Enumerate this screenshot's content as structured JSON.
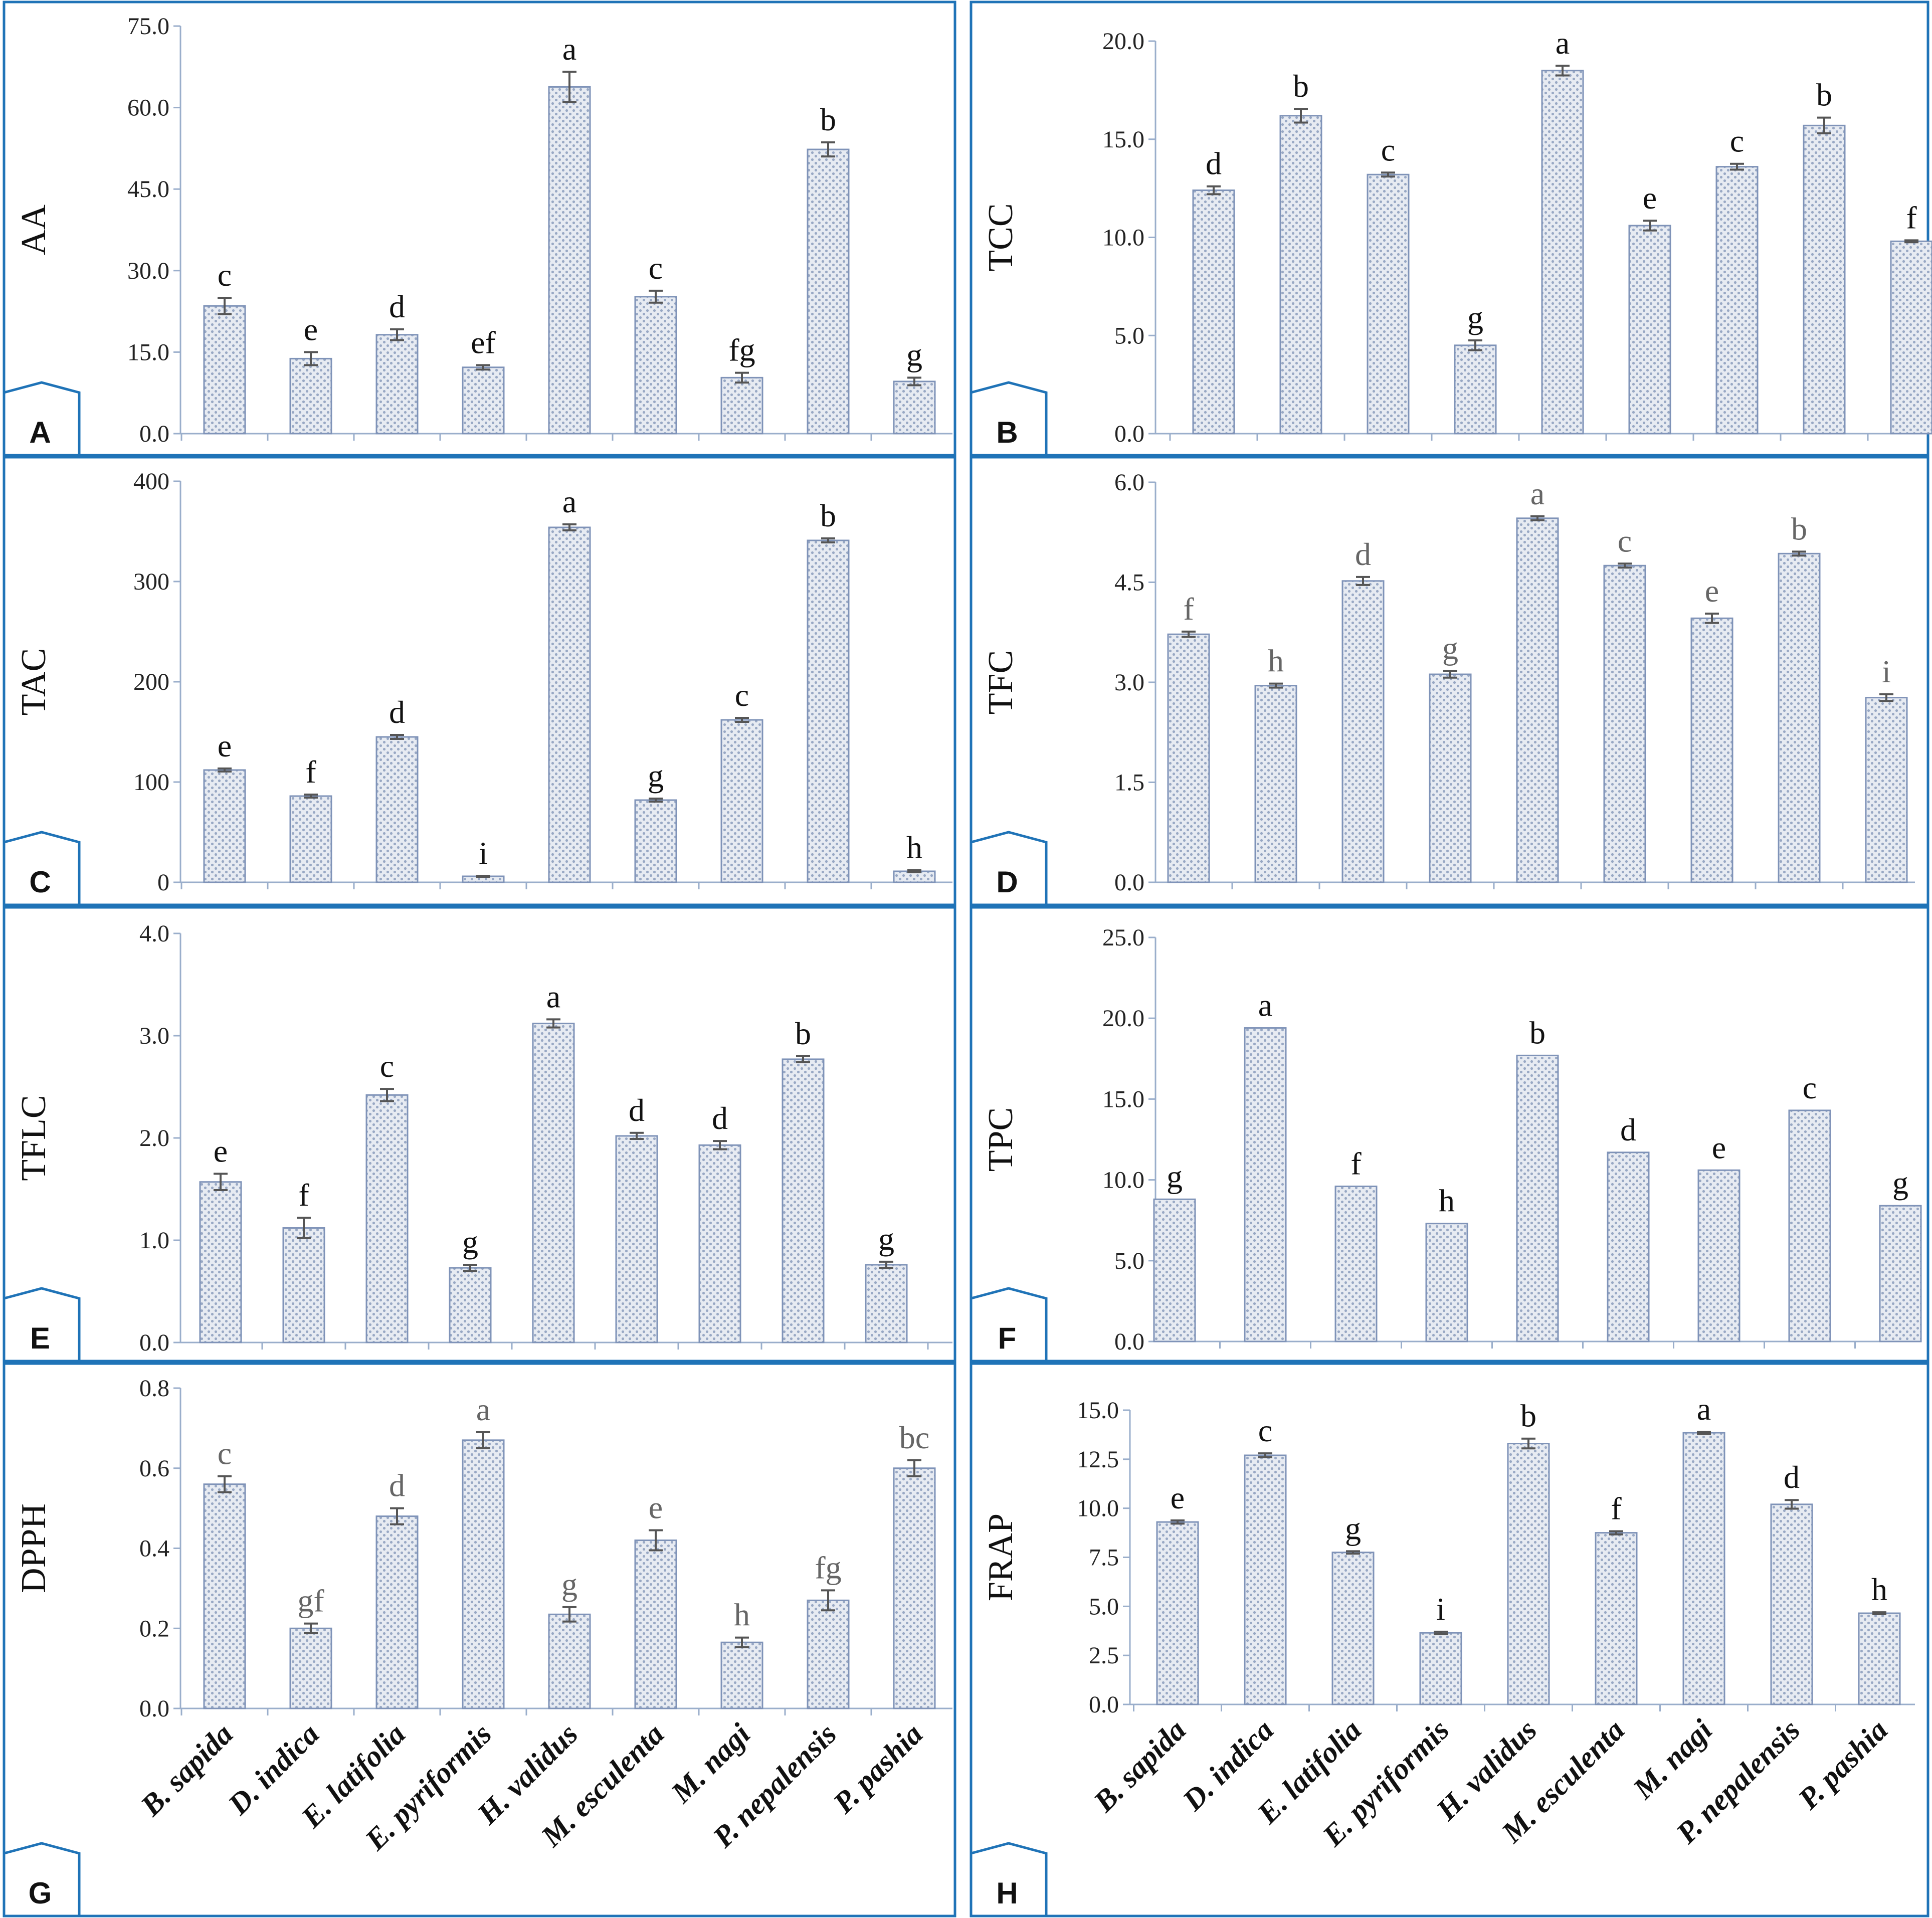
{
  "categories": [
    "B. sapida",
    "D. indica",
    "E. latifolia",
    "E. pyriformis",
    "H. validus",
    "M. esculenta",
    "M. nagi",
    "P. nepalensis",
    "P. pashia"
  ],
  "colors": {
    "frame": "#1f73b7",
    "axis": "#9aaecb",
    "bar_edge": "#7f93b8",
    "bar_fill": "#cdd5e3",
    "bar_dot": "#8f9fbe",
    "error": "#555555"
  },
  "chart_data": [
    {
      "type": "bar",
      "panel": "A",
      "ylabel": "AA",
      "ylim": [
        0,
        75
      ],
      "yticks": [
        "0.0",
        "15.0",
        "30.0",
        "45.0",
        "60.0",
        "75.0"
      ],
      "values": [
        23.5,
        13.8,
        18.2,
        12.2,
        63.8,
        25.2,
        10.3,
        52.3,
        9.6
      ],
      "errors": [
        1.5,
        1.2,
        1.0,
        0.4,
        2.8,
        1.1,
        0.9,
        1.3,
        0.7
      ],
      "letters": [
        "c",
        "e",
        "d",
        "ef",
        "a",
        "c",
        "fg",
        "b",
        "g"
      ],
      "letter_color": "#111111"
    },
    {
      "type": "bar",
      "panel": "B",
      "ylabel": "TCC",
      "ylim": [
        0,
        20
      ],
      "yticks": [
        "0.0",
        "5.0",
        "10.0",
        "15.0",
        "20.0"
      ],
      "values": [
        12.4,
        16.2,
        13.2,
        4.5,
        18.5,
        10.6,
        13.6,
        15.7,
        9.8
      ],
      "errors": [
        0.2,
        0.35,
        0.1,
        0.25,
        0.25,
        0.25,
        0.15,
        0.4,
        0.05
      ],
      "letters": [
        "d",
        "b",
        "c",
        "g",
        "a",
        "e",
        "c",
        "b",
        "f"
      ],
      "letter_color": "#111111"
    },
    {
      "type": "bar",
      "panel": "C",
      "ylabel": "TAC",
      "ylim": [
        0,
        400
      ],
      "yticks": [
        "0",
        "100",
        "200",
        "300",
        "400"
      ],
      "values": [
        112,
        86,
        145,
        6,
        354,
        82,
        162,
        341,
        11
      ],
      "errors": [
        1.5,
        1.5,
        2,
        0.5,
        3,
        1.5,
        2,
        2,
        1
      ],
      "letters": [
        "e",
        "f",
        "d",
        "i",
        "a",
        "g",
        "c",
        "b",
        "h"
      ],
      "letter_color": "#111111"
    },
    {
      "type": "bar",
      "panel": "D",
      "ylabel": "TFC",
      "ylim": [
        0,
        6
      ],
      "yticks": [
        "0.0",
        "1.5",
        "3.0",
        "4.5",
        "6.0"
      ],
      "values": [
        3.72,
        2.95,
        4.52,
        3.12,
        5.46,
        4.75,
        3.96,
        4.93,
        2.77
      ],
      "errors": [
        0.04,
        0.03,
        0.06,
        0.05,
        0.03,
        0.03,
        0.07,
        0.03,
        0.05
      ],
      "letters": [
        "f",
        "h",
        "d",
        "g",
        "a",
        "c",
        "e",
        "b",
        "i"
      ],
      "letter_color": "#666666"
    },
    {
      "type": "bar",
      "panel": "E",
      "ylabel": "TFLC",
      "ylim": [
        0,
        4
      ],
      "yticks": [
        "0.0",
        "1.0",
        "2.0",
        "3.0",
        "4.0"
      ],
      "values": [
        1.57,
        1.12,
        2.42,
        0.73,
        3.12,
        2.02,
        1.93,
        2.77,
        0.76
      ],
      "errors": [
        0.08,
        0.1,
        0.06,
        0.03,
        0.04,
        0.03,
        0.04,
        0.03,
        0.03
      ],
      "letters": [
        "e",
        "f",
        "c",
        "g",
        "a",
        "d",
        "d",
        "b",
        "g"
      ],
      "letter_color": "#111111"
    },
    {
      "type": "bar",
      "panel": "F",
      "ylabel": "TPC",
      "ylim": [
        0,
        25
      ],
      "yticks": [
        "0.0",
        "5.0",
        "10.0",
        "15.0",
        "20.0",
        "25.0"
      ],
      "values": [
        8.8,
        19.4,
        9.6,
        7.3,
        17.7,
        11.7,
        10.6,
        14.3,
        8.4
      ],
      "errors": [
        0,
        0,
        0,
        0,
        0,
        0,
        0,
        0,
        0
      ],
      "letters": [
        "g",
        "a",
        "f",
        "h",
        "b",
        "d",
        "e",
        "c",
        "g"
      ],
      "letter_color": "#111111"
    },
    {
      "type": "bar",
      "panel": "G",
      "ylabel": "DPPH",
      "ylim": [
        0,
        0.8
      ],
      "yticks": [
        "0.0",
        "0.2",
        "0.4",
        "0.6",
        "0.8"
      ],
      "values": [
        0.56,
        0.2,
        0.48,
        0.67,
        0.235,
        0.42,
        0.165,
        0.27,
        0.6
      ],
      "errors": [
        0.02,
        0.012,
        0.02,
        0.02,
        0.018,
        0.025,
        0.012,
        0.025,
        0.02
      ],
      "letters": [
        "c",
        "gf",
        "d",
        "a",
        "g",
        "e",
        "h",
        "fg",
        "bc"
      ],
      "letter_color": "#666666"
    },
    {
      "type": "bar",
      "panel": "H",
      "ylabel": "FRAP",
      "ylim": [
        0,
        15
      ],
      "yticks": [
        "0.0",
        "2.5",
        "5.0",
        "7.5",
        "10.0",
        "12.5",
        "15.0"
      ],
      "values": [
        9.3,
        12.7,
        7.75,
        3.65,
        13.3,
        8.75,
        13.85,
        10.2,
        4.65
      ],
      "errors": [
        0.08,
        0.1,
        0.06,
        0.06,
        0.25,
        0.08,
        0.05,
        0.22,
        0.05
      ],
      "letters": [
        "e",
        "c",
        "g",
        "i",
        "b",
        "f",
        "a",
        "d",
        "h"
      ],
      "letter_color": "#111111"
    }
  ]
}
